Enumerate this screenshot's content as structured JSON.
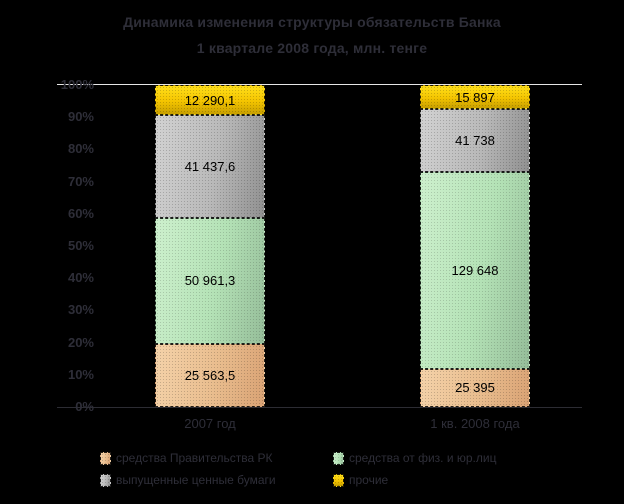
{
  "chart_data": {
    "type": "bar",
    "subtype": "stacked-100-percent",
    "title": "Динамика изменения структуры обязательств Банка",
    "subtitle": "1 квартале 2008 года, млн. тенге",
    "categories": [
      "2007 год",
      "1 кв. 2008 года"
    ],
    "series": [
      {
        "name": "средства Правительства РК",
        "color": "#e9bd8e",
        "values": [
          25563.5,
          25395
        ],
        "labels": [
          "25 563,5",
          "25 395"
        ]
      },
      {
        "name": "средства от физ. и юр.лиц",
        "color": "#b4e2b6",
        "values": [
          50961.3,
          129648
        ],
        "labels": [
          "50 961,3",
          "129 648"
        ]
      },
      {
        "name": "выпущенные ценные бумаги",
        "color": "#b9b9b9",
        "values": [
          41437.6,
          41738
        ],
        "labels": [
          "41 437,6",
          "41 738"
        ]
      },
      {
        "name": "прочие",
        "color": "#f4c400",
        "values": [
          12290.1,
          15897
        ],
        "labels": [
          "12 290,1",
          "15 897"
        ]
      }
    ],
    "y_ticks": [
      "100%",
      "90%",
      "80%",
      "70%",
      "60%",
      "50%",
      "40%",
      "30%",
      "20%",
      "10%",
      "0%"
    ],
    "ylim": [
      0,
      100
    ],
    "ylabel": "",
    "xlabel": "",
    "grid": false,
    "legend_position": "bottom",
    "background_color": "#000000",
    "text_color": "#2e2e38"
  }
}
